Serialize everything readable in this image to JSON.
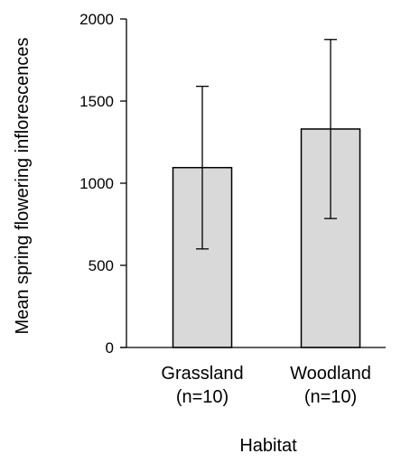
{
  "chart_data": {
    "type": "bar",
    "title": "",
    "xlabel": "Habitat",
    "ylabel": "Mean spring flowering inflorescences",
    "categories": [
      {
        "line1": "Grassland",
        "line2": "(n=10)"
      },
      {
        "line1": "Woodland",
        "line2": "(n=10)"
      }
    ],
    "values": [
      1095,
      1330
    ],
    "error_lower": [
      600,
      785
    ],
    "error_upper": [
      1590,
      1875
    ],
    "ylim": [
      0,
      2000
    ],
    "yticks": [
      0,
      500,
      1000,
      1500,
      2000
    ],
    "grid": false,
    "legend": "none",
    "colors": {
      "bar_fill": "#d9d9d9",
      "bar_stroke": "#000000",
      "axis": "#000000",
      "error_bar": "#000000"
    }
  }
}
